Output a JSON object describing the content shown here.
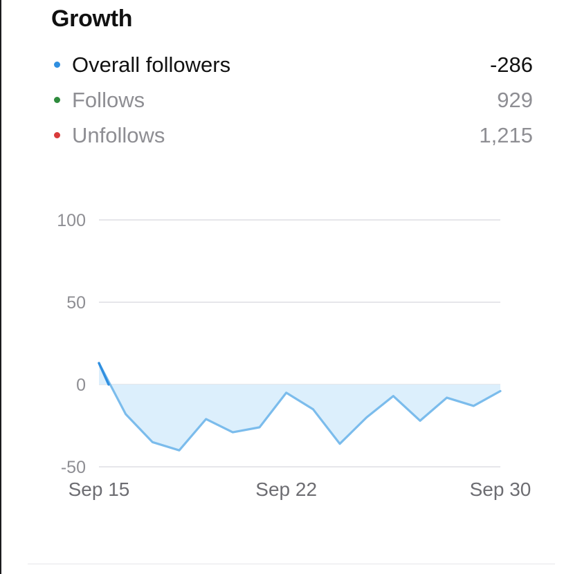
{
  "title": "Growth",
  "legend": [
    {
      "label": "Overall followers",
      "value": "-286",
      "color": "#2f8fe0",
      "style": "primary"
    },
    {
      "label": "Follows",
      "value": "929",
      "color": "#2e8b3d",
      "style": "muted"
    },
    {
      "label": "Unfollows",
      "value": "1,215",
      "color": "#d93a3a",
      "style": "muted"
    }
  ],
  "chart_data": {
    "type": "area",
    "series": [
      {
        "name": "Overall followers",
        "color": "#7bbcec",
        "fill": "#dceffc",
        "x": [
          "Sep 15",
          "Sep 16",
          "Sep 17",
          "Sep 18",
          "Sep 19",
          "Sep 20",
          "Sep 21",
          "Sep 22",
          "Sep 23",
          "Sep 24",
          "Sep 25",
          "Sep 26",
          "Sep 27",
          "Sep 28",
          "Sep 29",
          "Sep 30"
        ],
        "values": [
          13,
          -18,
          -35,
          -40,
          -21,
          -29,
          -26,
          -5,
          -15,
          -36,
          -20,
          -7,
          -22,
          -8,
          -13,
          -4
        ]
      }
    ],
    "y_ticks": [
      "100",
      "50",
      "0",
      "-50"
    ],
    "y_tick_values": [
      100,
      50,
      0,
      -50
    ],
    "x_tick_labels": [
      "Sep 15",
      "Sep 22",
      "Sep 30"
    ],
    "ylim": [
      -50,
      100
    ],
    "grid": true,
    "legend_placement": "top"
  }
}
